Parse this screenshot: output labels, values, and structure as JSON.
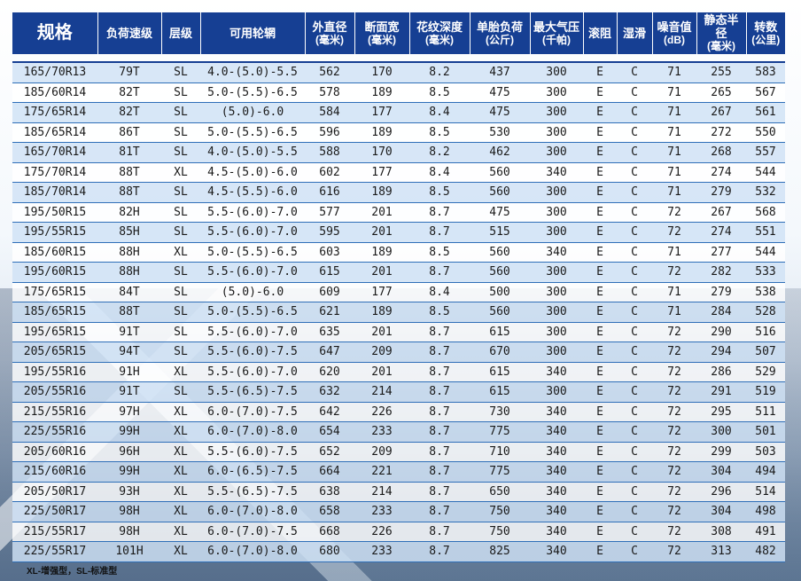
{
  "headers": [
    {
      "main": "规格",
      "sub": ""
    },
    {
      "main": "负荷速级",
      "sub": ""
    },
    {
      "main": "层级",
      "sub": ""
    },
    {
      "main": "可用轮辋",
      "sub": ""
    },
    {
      "main": "外直径",
      "sub": "(毫米)"
    },
    {
      "main": "断面宽",
      "sub": "(毫米)"
    },
    {
      "main": "花纹深度",
      "sub": "(毫米)"
    },
    {
      "main": "单胎负荷",
      "sub": "(公斤)"
    },
    {
      "main": "最大气压",
      "sub": "(千帕)"
    },
    {
      "main": "滚阻",
      "sub": ""
    },
    {
      "main": "湿滑",
      "sub": ""
    },
    {
      "main": "噪音值",
      "sub": "(dB)"
    },
    {
      "main": "静态半径",
      "sub": "(毫米)"
    },
    {
      "main": "转数",
      "sub": "(公里)"
    }
  ],
  "rows": [
    [
      "165/70R13",
      "79T",
      "SL",
      "4.0-(5.0)-5.5",
      "562",
      "170",
      "8.2",
      "437",
      "300",
      "E",
      "C",
      "71",
      "255",
      "583"
    ],
    [
      "185/60R14",
      "82T",
      "SL",
      "5.0-(5.5)-6.5",
      "578",
      "189",
      "8.5",
      "475",
      "300",
      "E",
      "C",
      "71",
      "265",
      "567"
    ],
    [
      "175/65R14",
      "82T",
      "SL",
      "(5.0)-6.0",
      "584",
      "177",
      "8.4",
      "475",
      "300",
      "E",
      "C",
      "71",
      "267",
      "561"
    ],
    [
      "185/65R14",
      "86T",
      "SL",
      "5.0-(5.5)-6.5",
      "596",
      "189",
      "8.5",
      "530",
      "300",
      "E",
      "C",
      "71",
      "272",
      "550"
    ],
    [
      "165/70R14",
      "81T",
      "SL",
      "4.0-(5.0)-5.5",
      "588",
      "170",
      "8.2",
      "462",
      "300",
      "E",
      "C",
      "71",
      "268",
      "557"
    ],
    [
      "175/70R14",
      "88T",
      "XL",
      "4.5-(5.0)-6.0",
      "602",
      "177",
      "8.4",
      "560",
      "340",
      "E",
      "C",
      "71",
      "274",
      "544"
    ],
    [
      "185/70R14",
      "88T",
      "SL",
      "4.5-(5.5)-6.0",
      "616",
      "189",
      "8.5",
      "560",
      "300",
      "E",
      "C",
      "71",
      "279",
      "532"
    ],
    [
      "195/50R15",
      "82H",
      "SL",
      "5.5-(6.0)-7.0",
      "577",
      "201",
      "8.7",
      "475",
      "300",
      "E",
      "C",
      "72",
      "267",
      "568"
    ],
    [
      "195/55R15",
      "85H",
      "SL",
      "5.5-(6.0)-7.0",
      "595",
      "201",
      "8.7",
      "515",
      "300",
      "E",
      "C",
      "72",
      "274",
      "551"
    ],
    [
      "185/60R15",
      "88H",
      "XL",
      "5.0-(5.5)-6.5",
      "603",
      "189",
      "8.5",
      "560",
      "340",
      "E",
      "C",
      "71",
      "277",
      "544"
    ],
    [
      "195/60R15",
      "88H",
      "SL",
      "5.5-(6.0)-7.0",
      "615",
      "201",
      "8.7",
      "560",
      "300",
      "E",
      "C",
      "72",
      "282",
      "533"
    ],
    [
      "175/65R15",
      "84T",
      "SL",
      "(5.0)-6.0",
      "609",
      "177",
      "8.4",
      "500",
      "300",
      "E",
      "C",
      "71",
      "279",
      "538"
    ],
    [
      "185/65R15",
      "88T",
      "SL",
      "5.0-(5.5)-6.5",
      "621",
      "189",
      "8.5",
      "560",
      "300",
      "E",
      "C",
      "71",
      "284",
      "528"
    ],
    [
      "195/65R15",
      "91T",
      "SL",
      "5.5-(6.0)-7.0",
      "635",
      "201",
      "8.7",
      "615",
      "300",
      "E",
      "C",
      "72",
      "290",
      "516"
    ],
    [
      "205/65R15",
      "94T",
      "SL",
      "5.5-(6.0)-7.5",
      "647",
      "209",
      "8.7",
      "670",
      "300",
      "E",
      "C",
      "72",
      "294",
      "507"
    ],
    [
      "195/55R16",
      "91H",
      "XL",
      "5.5-(6.0)-7.0",
      "620",
      "201",
      "8.7",
      "615",
      "340",
      "E",
      "C",
      "72",
      "286",
      "529"
    ],
    [
      "205/55R16",
      "91T",
      "SL",
      "5.5-(6.5)-7.5",
      "632",
      "214",
      "8.7",
      "615",
      "300",
      "E",
      "C",
      "72",
      "291",
      "519"
    ],
    [
      "215/55R16",
      "97H",
      "XL",
      "6.0-(7.0)-7.5",
      "642",
      "226",
      "8.7",
      "730",
      "340",
      "E",
      "C",
      "72",
      "295",
      "511"
    ],
    [
      "225/55R16",
      "99H",
      "XL",
      "6.0-(7.0)-8.0",
      "654",
      "233",
      "8.7",
      "775",
      "340",
      "E",
      "C",
      "72",
      "300",
      "501"
    ],
    [
      "205/60R16",
      "96H",
      "XL",
      "5.5-(6.0)-7.5",
      "652",
      "209",
      "8.7",
      "710",
      "340",
      "E",
      "C",
      "72",
      "299",
      "503"
    ],
    [
      "215/60R16",
      "99H",
      "XL",
      "6.0-(6.5)-7.5",
      "664",
      "221",
      "8.7",
      "775",
      "340",
      "E",
      "C",
      "72",
      "304",
      "494"
    ],
    [
      "205/50R17",
      "93H",
      "XL",
      "5.5-(6.5)-7.5",
      "638",
      "214",
      "8.7",
      "650",
      "340",
      "E",
      "C",
      "72",
      "296",
      "514"
    ],
    [
      "225/50R17",
      "98H",
      "XL",
      "6.0-(7.0)-8.0",
      "658",
      "233",
      "8.7",
      "750",
      "340",
      "E",
      "C",
      "72",
      "304",
      "498"
    ],
    [
      "215/55R17",
      "98H",
      "XL",
      "6.0-(7.0)-7.5",
      "668",
      "226",
      "8.7",
      "750",
      "340",
      "E",
      "C",
      "72",
      "308",
      "491"
    ],
    [
      "225/55R17",
      "101H",
      "XL",
      "6.0-(7.0)-8.0",
      "680",
      "233",
      "8.7",
      "825",
      "340",
      "E",
      "C",
      "72",
      "313",
      "482"
    ]
  ],
  "footnote": "XL-增强型，SL-标准型"
}
